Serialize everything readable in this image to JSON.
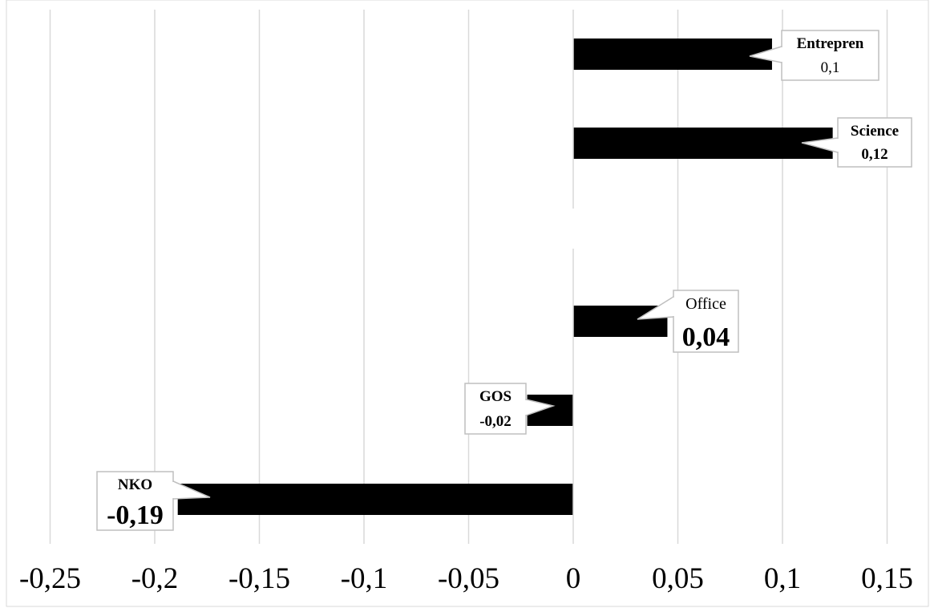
{
  "chart_data": {
    "type": "bar",
    "orientation": "horizontal",
    "categories": [
      "Entrepren",
      "Science",
      "",
      "Office",
      "GOS",
      "NKO"
    ],
    "values": [
      0.095,
      0.124,
      0,
      0.045,
      -0.022,
      -0.189
    ],
    "data_labels": [
      {
        "name": "Entrepren",
        "value": "0,1"
      },
      {
        "name": "Science",
        "value": "0,12"
      },
      null,
      {
        "name": "Office",
        "value": "0,04"
      },
      {
        "name": "GOS",
        "value": "-0,02"
      },
      {
        "name": "NKO",
        "value": "-0,19"
      }
    ],
    "xlim": [
      -0.27,
      0.17
    ],
    "xticks": [
      -0.25,
      -0.2,
      -0.15,
      -0.1,
      -0.05,
      0,
      0.05,
      0.1,
      0.15
    ],
    "xtick_labels": [
      "-0,25",
      "-0,2",
      "-0,15",
      "-0,1",
      "-0,05",
      "0",
      "0,05",
      "0,1",
      "0,15"
    ],
    "title": "",
    "xlabel": "",
    "ylabel": "",
    "grid": "vertical",
    "legend": "none",
    "bar_color": "#000000",
    "grid_color": "#d9d9d9",
    "callout_border_color": "#bfbfbf"
  }
}
